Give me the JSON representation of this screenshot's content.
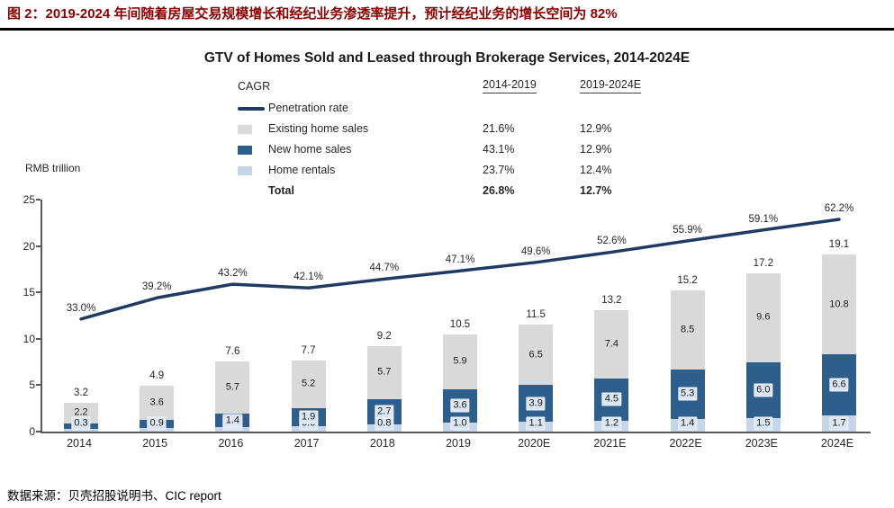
{
  "header": {
    "title": "图 2：2019-2024 年间随着房屋交易规模增长和经纪业务渗透率提升，预计经纪业务的增长空间为 82%"
  },
  "footer": {
    "source": "数据来源：贝壳招股说明书、CIC report"
  },
  "colors": {
    "accent": "#8B0000",
    "penetration_line": "#1f3a63",
    "existing_home_sales": "#d9d9d9",
    "new_home_sales": "#2e5f8c",
    "home_rentals": "#c7d5e8"
  },
  "legend_table": {
    "header": {
      "col0": "CAGR",
      "col1": "2014-2019",
      "col2": "2019-2024E"
    },
    "rows": [
      {
        "label": "Penetration rate",
        "cagr_2014_2019": "",
        "cagr_2019_2024": ""
      },
      {
        "label": "Existing home sales",
        "cagr_2014_2019": "21.6%",
        "cagr_2019_2024": "12.9%"
      },
      {
        "label": "New home sales",
        "cagr_2014_2019": "43.1%",
        "cagr_2019_2024": "12.9%"
      },
      {
        "label": "Home rentals",
        "cagr_2014_2019": "23.7%",
        "cagr_2019_2024": "12.4%"
      },
      {
        "label": "Total",
        "cagr_2014_2019": "26.8%",
        "cagr_2019_2024": "12.7%"
      }
    ]
  },
  "chart_data": {
    "type": "bar",
    "subtype": "stacked-bar-with-line",
    "title": "GTV of Homes Sold and Leased through Brokerage Services, 2014-2024E",
    "ylabel": "RMB trillion",
    "ylim": [
      0,
      25
    ],
    "yticks": [
      0,
      5,
      10,
      15,
      20,
      25
    ],
    "grid": false,
    "legend_position": "top-center",
    "categories": [
      "2014",
      "2015",
      "2016",
      "2017",
      "2018",
      "2019",
      "2020E",
      "2021E",
      "2022E",
      "2023E",
      "2024E"
    ],
    "series": [
      {
        "name": "Home rentals",
        "color_key": "home_rentals",
        "values": [
          0.3,
          0.4,
          0.5,
          0.6,
          0.8,
          1.0,
          1.1,
          1.2,
          1.4,
          1.5,
          1.7
        ]
      },
      {
        "name": "New home sales",
        "color_key": "new_home_sales",
        "values": [
          0.6,
          0.9,
          1.4,
          1.9,
          2.7,
          3.6,
          3.9,
          4.5,
          5.3,
          6.0,
          6.6
        ]
      },
      {
        "name": "Existing home sales",
        "color_key": "existing_home_sales",
        "values": [
          2.2,
          3.6,
          5.7,
          5.2,
          5.7,
          5.9,
          6.5,
          7.4,
          8.5,
          9.6,
          10.8
        ]
      }
    ],
    "totals": [
      3.2,
      4.9,
      7.6,
      7.7,
      9.2,
      10.5,
      11.5,
      13.2,
      15.2,
      17.2,
      19.1
    ],
    "line": {
      "name": "Penetration rate",
      "color_key": "penetration_line",
      "unit": "%",
      "values": [
        33.0,
        39.2,
        43.2,
        42.1,
        44.7,
        47.1,
        49.6,
        52.6,
        55.9,
        59.1,
        62.2
      ],
      "mapped_axis_max": 68
    }
  }
}
